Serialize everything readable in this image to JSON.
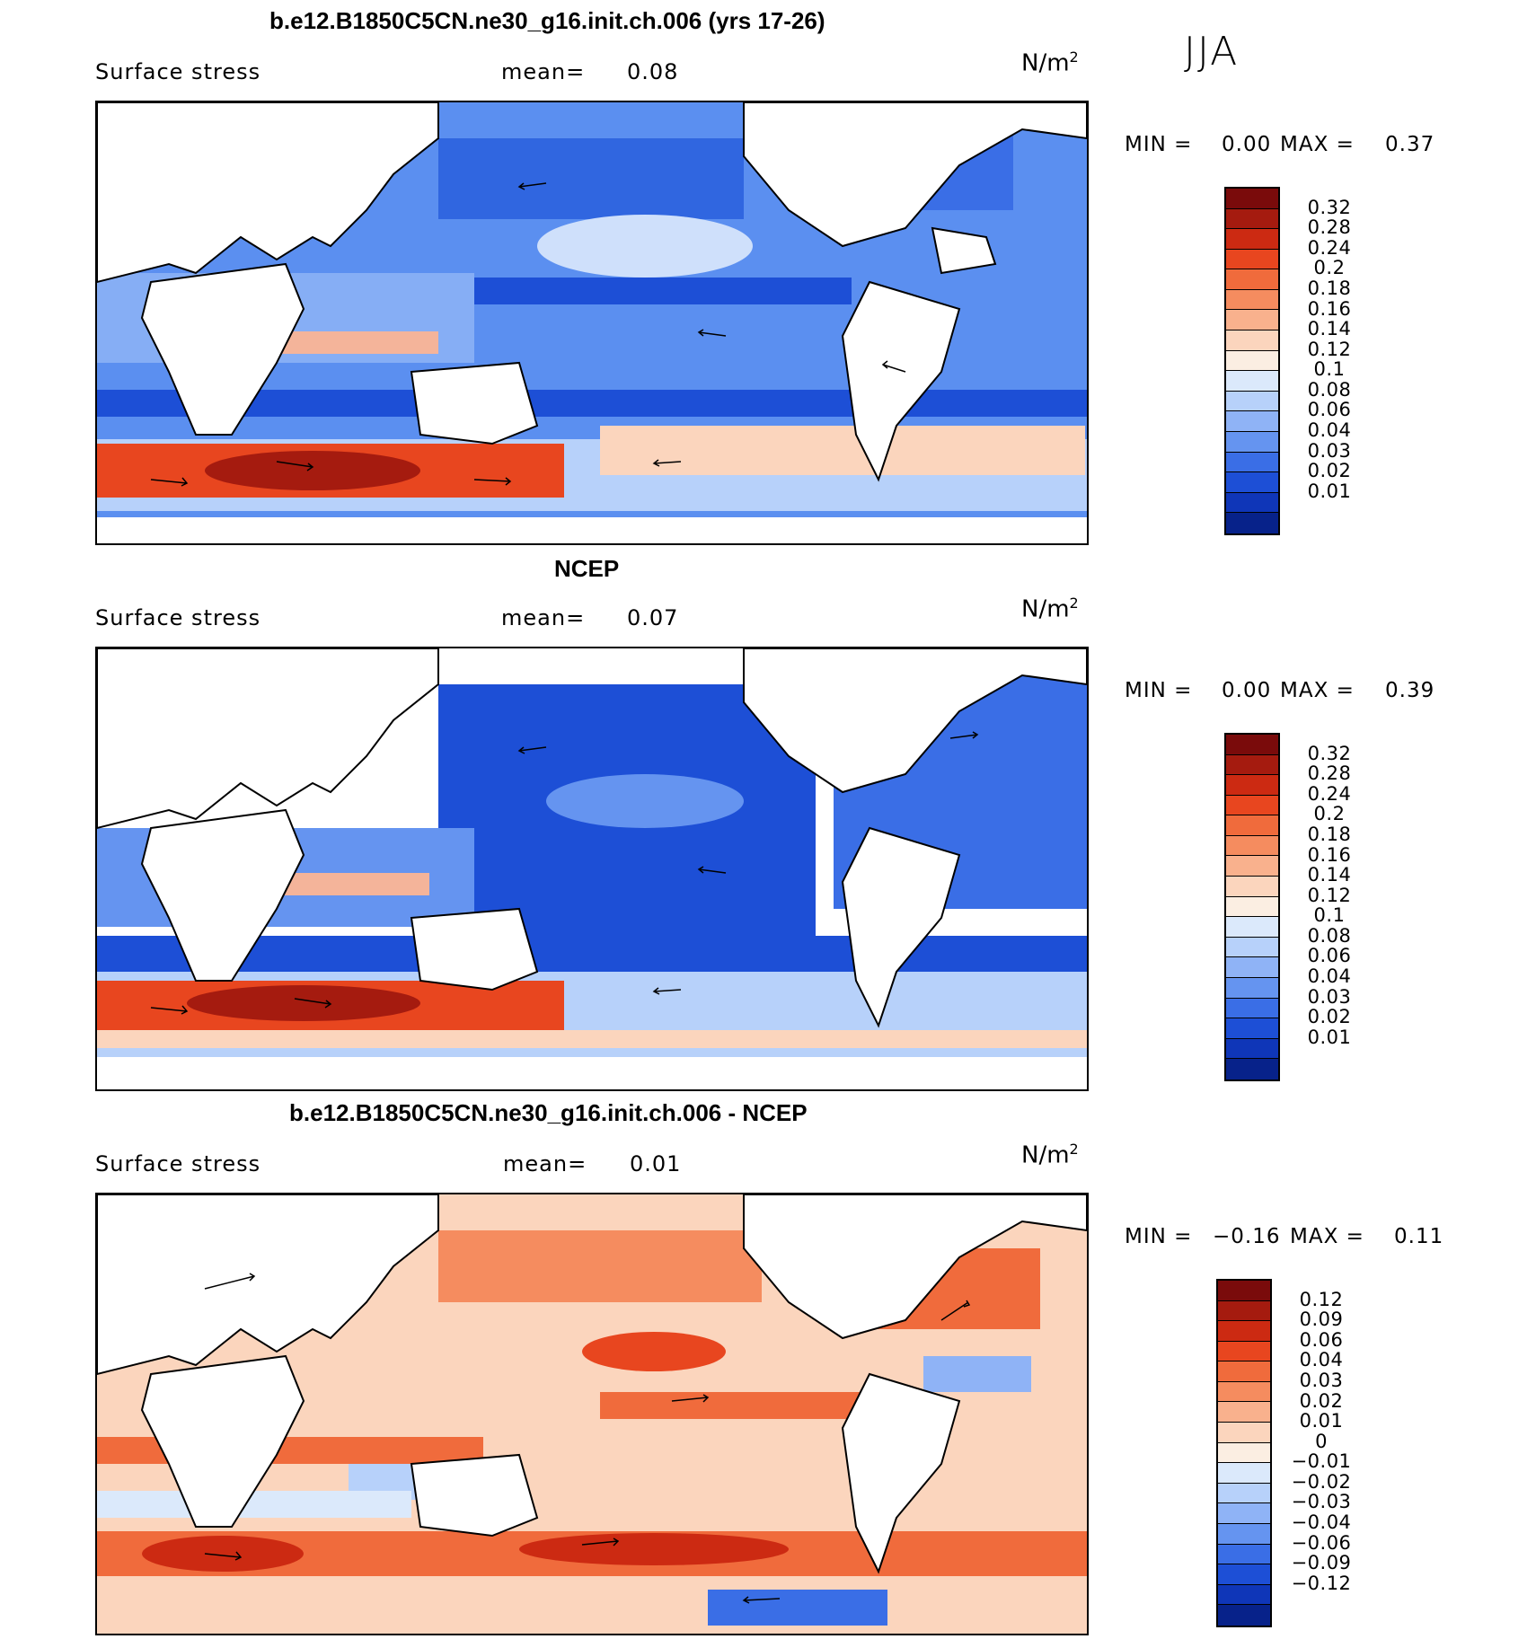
{
  "season": "JJA",
  "units_base": "N/m",
  "units_exp": "2",
  "panels": [
    {
      "title": "b.e12.B1850C5CN.ne30_g16.init.ch.006 (yrs 17-26)",
      "variable": "Surface stress",
      "mean_label": "mean=",
      "mean_value": "0.08",
      "min_label": "MIN =",
      "min_value": "0.00",
      "max_label": "MAX =",
      "max_value": "0.37",
      "colorbar_labels": [
        "0.32",
        "0.28",
        "0.24",
        "0.2",
        "0.18",
        "0.16",
        "0.14",
        "0.12",
        "0.1",
        "0.08",
        "0.06",
        "0.04",
        "0.03",
        "0.02",
        "0.01"
      ],
      "colorbar_colors": [
        "#7a0b0b",
        "#a51b0f",
        "#cc2a12",
        "#e8461f",
        "#f06b3c",
        "#f58c5f",
        "#f9b18d",
        "#fbd5bd",
        "#fbeee2",
        "#dbe9fb",
        "#b7d1fa",
        "#8fb3f6",
        "#6594f0",
        "#3a6ee6",
        "#1d4fd6",
        "#0f36b8",
        "#07228a"
      ]
    },
    {
      "title": "NCEP",
      "variable": "Surface stress",
      "mean_label": "mean=",
      "mean_value": "0.07",
      "min_label": "MIN =",
      "min_value": "0.00",
      "max_label": "MAX =",
      "max_value": "0.39",
      "colorbar_labels": [
        "0.32",
        "0.28",
        "0.24",
        "0.2",
        "0.18",
        "0.16",
        "0.14",
        "0.12",
        "0.1",
        "0.08",
        "0.06",
        "0.04",
        "0.03",
        "0.02",
        "0.01"
      ],
      "colorbar_colors": [
        "#7a0b0b",
        "#a51b0f",
        "#cc2a12",
        "#e8461f",
        "#f06b3c",
        "#f58c5f",
        "#f9b18d",
        "#fbd5bd",
        "#fbeee2",
        "#dbe9fb",
        "#b7d1fa",
        "#8fb3f6",
        "#6594f0",
        "#3a6ee6",
        "#1d4fd6",
        "#0f36b8",
        "#07228a"
      ]
    },
    {
      "title": "b.e12.B1850C5CN.ne30_g16.init.ch.006 - NCEP",
      "variable": "Surface stress",
      "mean_label": "mean=",
      "mean_value": "0.01",
      "min_label": "MIN =",
      "min_value": "−0.16",
      "max_label": "MAX =",
      "max_value": "0.11",
      "colorbar_labels": [
        "0.12",
        "0.09",
        "0.06",
        "0.04",
        "0.03",
        "0.02",
        "0.01",
        "0",
        "−0.01",
        "−0.02",
        "−0.03",
        "−0.04",
        "−0.06",
        "−0.09",
        "−0.12"
      ],
      "colorbar_colors": [
        "#7a0b0b",
        "#a51b0f",
        "#cc2a12",
        "#e8461f",
        "#f06b3c",
        "#f58c5f",
        "#f9b18d",
        "#fbd5bd",
        "#fbeee2",
        "#dbe9fb",
        "#b7d1fa",
        "#8fb3f6",
        "#6594f0",
        "#3a6ee6",
        "#1d4fd6",
        "#0f36b8",
        "#07228a"
      ]
    }
  ]
}
